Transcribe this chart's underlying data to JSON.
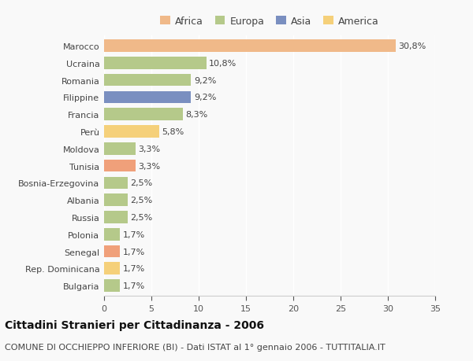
{
  "categories": [
    "Marocco",
    "Ucraina",
    "Romania",
    "Filippine",
    "Francia",
    "Perù",
    "Moldova",
    "Tunisia",
    "Bosnia-Erzegovina",
    "Albania",
    "Russia",
    "Polonia",
    "Senegal",
    "Rep. Dominicana",
    "Bulgaria"
  ],
  "values": [
    30.8,
    10.8,
    9.2,
    9.2,
    8.3,
    5.8,
    3.3,
    3.3,
    2.5,
    2.5,
    2.5,
    1.7,
    1.7,
    1.7,
    1.7
  ],
  "labels": [
    "30,8%",
    "10,8%",
    "9,2%",
    "9,2%",
    "8,3%",
    "5,8%",
    "3,3%",
    "3,3%",
    "2,5%",
    "2,5%",
    "2,5%",
    "1,7%",
    "1,7%",
    "1,7%",
    "1,7%"
  ],
  "colors": [
    "#F0B989",
    "#B5C98A",
    "#B5C98A",
    "#7A8FC0",
    "#B5C98A",
    "#F5D07A",
    "#B5C98A",
    "#F0A07A",
    "#B5C98A",
    "#B5C98A",
    "#B5C98A",
    "#B5C98A",
    "#F0A07A",
    "#F5D07A",
    "#B5C98A"
  ],
  "legend_labels": [
    "Africa",
    "Europa",
    "Asia",
    "America"
  ],
  "legend_colors": [
    "#F0B989",
    "#B5C98A",
    "#7A8FC0",
    "#F5D07A"
  ],
  "xlim": [
    0,
    35
  ],
  "xticks": [
    0,
    5,
    10,
    15,
    20,
    25,
    30,
    35
  ],
  "title": "Cittadini Stranieri per Cittadinanza - 2006",
  "subtitle": "COMUNE DI OCCHIEPPO INFERIORE (BI) - Dati ISTAT al 1° gennaio 2006 - TUTTITALIA.IT",
  "bg_color": "#f9f9f9",
  "bar_height": 0.72,
  "title_fontsize": 10,
  "subtitle_fontsize": 8,
  "label_fontsize": 8,
  "tick_fontsize": 8,
  "legend_fontsize": 9
}
